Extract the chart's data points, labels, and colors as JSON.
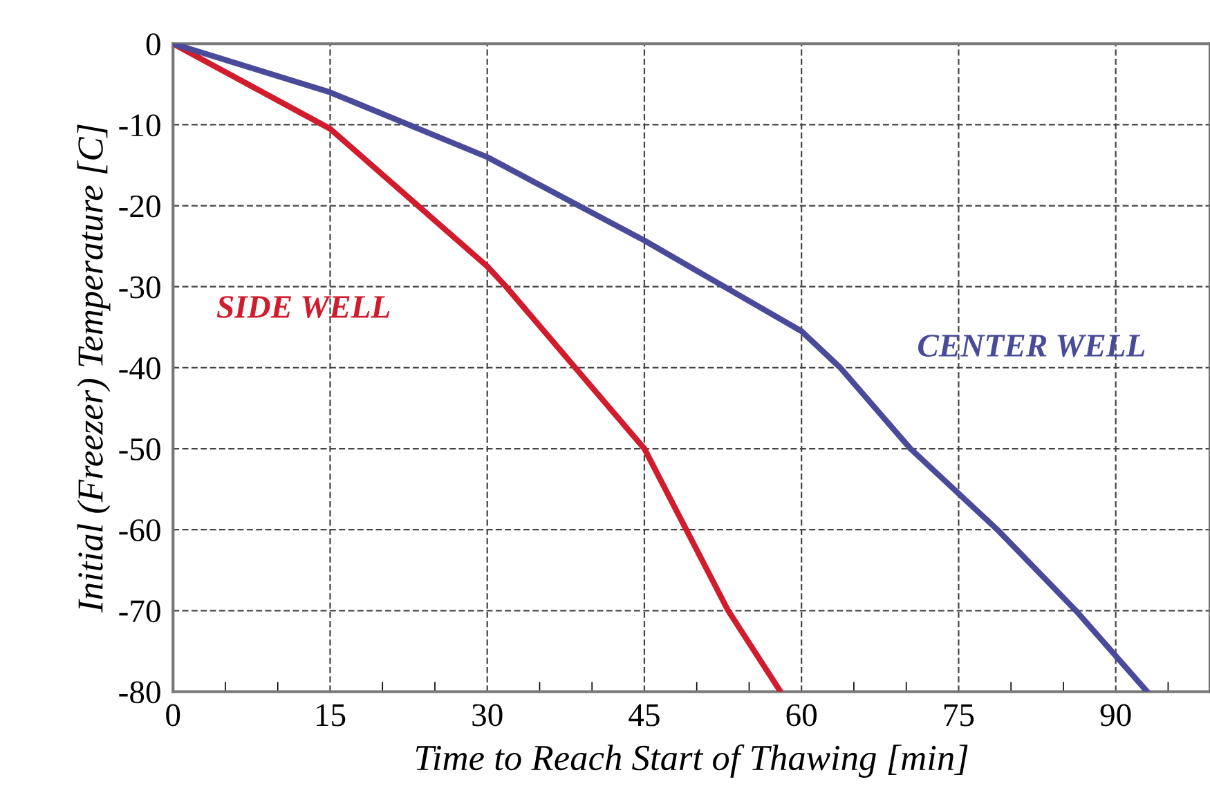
{
  "chart_data": {
    "type": "line",
    "xlabel": "Time to Reach Start of Thawing [min]",
    "ylabel": "Initial (Freezer) Temperature [C]",
    "xlim": [
      0,
      99
    ],
    "ylim": [
      -80,
      0
    ],
    "xticks": [
      0,
      15,
      30,
      45,
      60,
      75,
      90
    ],
    "yticks": [
      0,
      -10,
      -20,
      -30,
      -40,
      -50,
      -60,
      -70,
      -80
    ],
    "grid": true,
    "line_style": "solid",
    "marker": "none",
    "series": [
      {
        "name": "SIDE WELL",
        "color": "#d01c2c",
        "x": [
          0,
          15,
          30,
          31.8,
          38.4,
          45,
          49,
          53,
          58
        ],
        "values": [
          0,
          -10.5,
          -27.5,
          -30,
          -40,
          -50,
          -60,
          -70,
          -80
        ]
      },
      {
        "name": "CENTER WELL",
        "color": "#4a4a9a",
        "x": [
          0,
          15,
          30,
          45,
          60,
          63.7,
          70.4,
          78.7,
          86.2,
          93
        ],
        "values": [
          0,
          -6,
          -14,
          -24.3,
          -35.5,
          -40,
          -50,
          -60,
          -70,
          -80
        ]
      }
    ]
  }
}
